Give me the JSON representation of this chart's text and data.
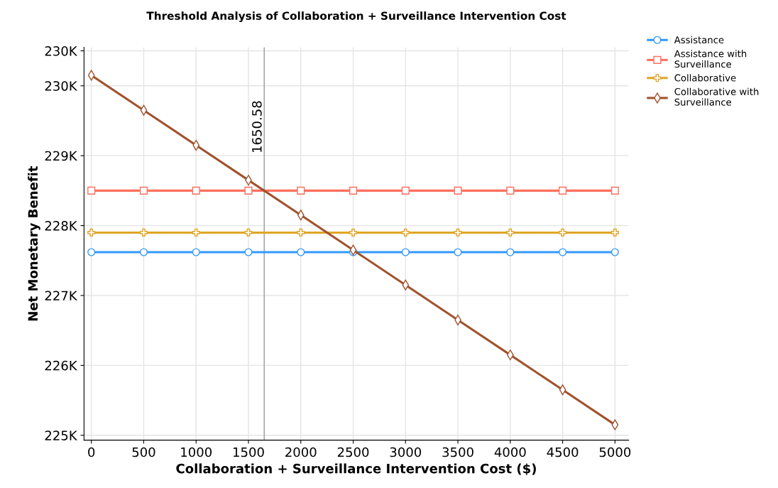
{
  "chart_data": {
    "type": "line",
    "title": "Threshold Analysis of Collaboration + Surveillance Intervention Cost",
    "xlabel": "Collaboration + Surveillance Intervention Cost ($)",
    "ylabel": "Net Monetary Benefit",
    "x": [
      0,
      500,
      1000,
      1500,
      2000,
      2500,
      3000,
      3500,
      4000,
      4500,
      5000
    ],
    "series": [
      {
        "name": "Assistance",
        "color": "#3399ff",
        "marker": "circle",
        "values": [
          227620,
          227620,
          227620,
          227620,
          227620,
          227620,
          227620,
          227620,
          227620,
          227620,
          227620
        ]
      },
      {
        "name": "Assistance with\nSurveillance",
        "color": "#ff6f5e",
        "marker": "square",
        "values": [
          228500,
          228500,
          228500,
          228500,
          228500,
          228500,
          228500,
          228500,
          228500,
          228500,
          228500
        ]
      },
      {
        "name": "Collaborative",
        "color": "#e0a526",
        "marker": "cross",
        "values": [
          227900,
          227900,
          227900,
          227900,
          227900,
          227900,
          227900,
          227900,
          227900,
          227900,
          227900
        ]
      },
      {
        "name": "Collaborative with\nSurveillance",
        "color": "#a0522d",
        "marker": "diamond",
        "values": [
          230150,
          229650,
          229150,
          228650,
          228150,
          227650,
          227150,
          226650,
          226150,
          225650,
          225150
        ]
      }
    ],
    "xlim": [
      -70,
      5130
    ],
    "xticks": [
      0,
      500,
      1000,
      1500,
      2000,
      2500,
      3000,
      3500,
      4000,
      4500,
      5000
    ],
    "ylim": [
      224930,
      230550
    ],
    "yticks": [
      {
        "value": 225000,
        "label": "225K"
      },
      {
        "value": 226000,
        "label": "226K"
      },
      {
        "value": 227000,
        "label": "227K"
      },
      {
        "value": 228000,
        "label": "228K"
      },
      {
        "value": 229000,
        "label": "229K"
      },
      {
        "value": 230000,
        "label": "230K"
      },
      {
        "value": 230500,
        "label": "230K"
      }
    ],
    "ref_lines": [
      {
        "axis": "x",
        "value": 1650.58,
        "label": "1650.58",
        "color": "#999999"
      }
    ],
    "grid": true,
    "legend": "top right",
    "line_style": "solid"
  }
}
